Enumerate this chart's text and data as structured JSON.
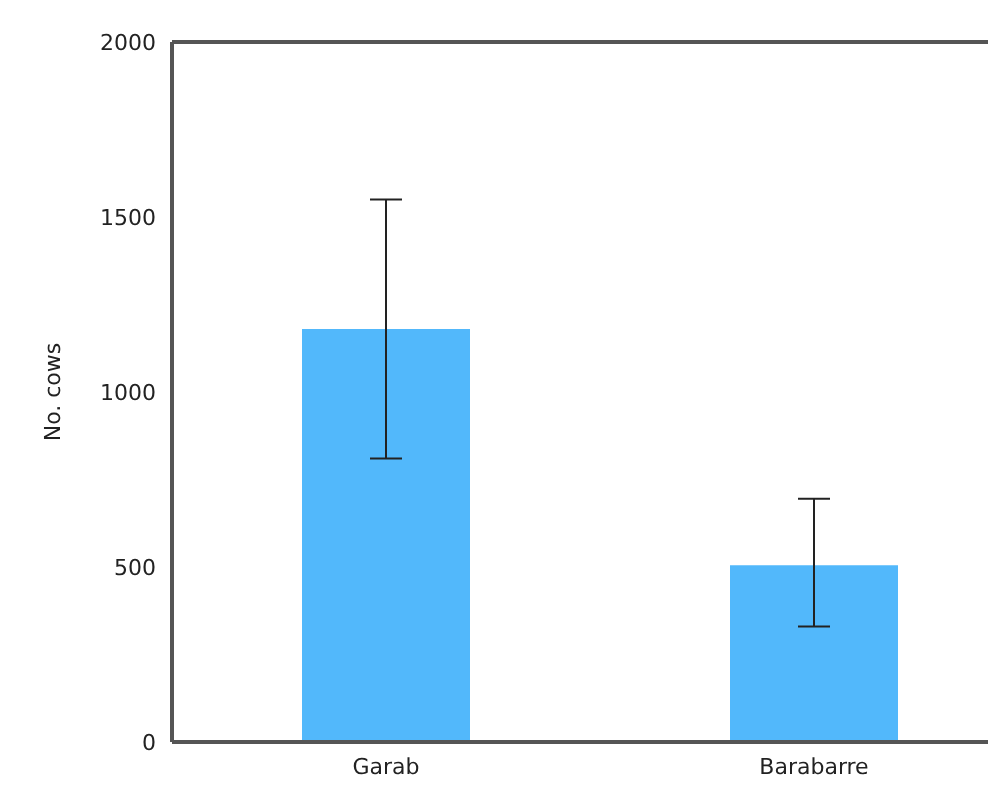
{
  "chart_data": {
    "type": "bar",
    "ylabel": "No. cows",
    "categories": [
      "Garab",
      "Barabarre"
    ],
    "values": [
      1180,
      505
    ],
    "errors": [
      [
        810,
        1550
      ],
      [
        330,
        695
      ]
    ],
    "color": "#52b8fb",
    "ylim": [
      0,
      2000
    ],
    "yticks": [
      0,
      500,
      1000,
      1500,
      2000
    ],
    "grid": false,
    "legend": false
  }
}
